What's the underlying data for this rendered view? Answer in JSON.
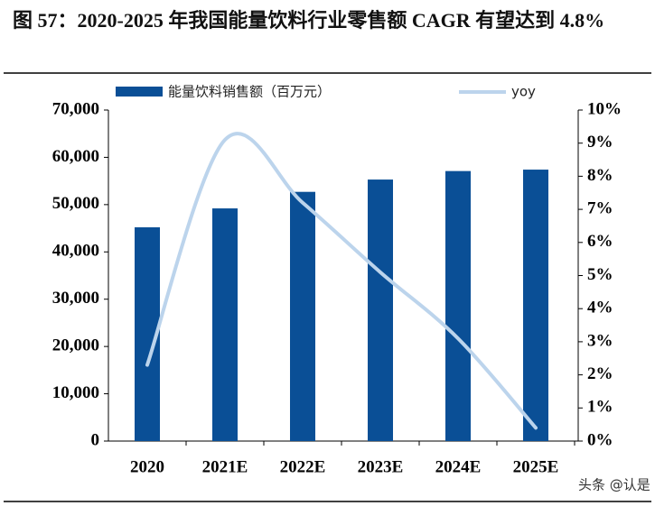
{
  "chart_data": {
    "type": "bar-line",
    "title": "图 57：2020-2025 年我国能量饮料行业零售额 CAGR 有望达到 4.8%",
    "categories": [
      "2020",
      "2021E",
      "2022E",
      "2023E",
      "2024E",
      "2025E"
    ],
    "series": [
      {
        "name": "能量饮料销售额（百万元）",
        "type": "bar",
        "color": "#0a4f96",
        "values": [
          45200,
          49200,
          52700,
          55300,
          57100,
          57400
        ]
      },
      {
        "name": "yoy",
        "type": "line",
        "axis": "y2",
        "color": "#bcd4ec",
        "values": [
          2.3,
          9.1,
          7.2,
          5.1,
          3.1,
          0.4
        ]
      }
    ],
    "ylim": [
      0,
      70000
    ],
    "yticks": [
      0,
      {
        "value": 10000,
        "label": "10,000"
      },
      {
        "value": 20000,
        "label": "20,000"
      },
      {
        "value": 30000,
        "label": "30,000"
      },
      {
        "value": 40000,
        "label": "40,000"
      },
      {
        "value": 50000,
        "label": "50,000"
      },
      {
        "value": 60000,
        "label": "60,000"
      },
      {
        "value": 70000,
        "label": "70,000"
      }
    ],
    "y2lim": [
      0,
      10
    ],
    "y2ticks": [
      {
        "value": 0,
        "label": "0%"
      },
      {
        "value": 1,
        "label": "1%"
      },
      {
        "value": 2,
        "label": "2%"
      },
      {
        "value": 3,
        "label": "3%"
      },
      {
        "value": 4,
        "label": "4%"
      },
      {
        "value": 5,
        "label": "5%"
      },
      {
        "value": 6,
        "label": "6%"
      },
      {
        "value": 7,
        "label": "7%"
      },
      {
        "value": 8,
        "label": "8%"
      },
      {
        "value": 9,
        "label": "9%"
      },
      {
        "value": 10,
        "label": "10%"
      }
    ],
    "watermark": "头条 @认是"
  }
}
